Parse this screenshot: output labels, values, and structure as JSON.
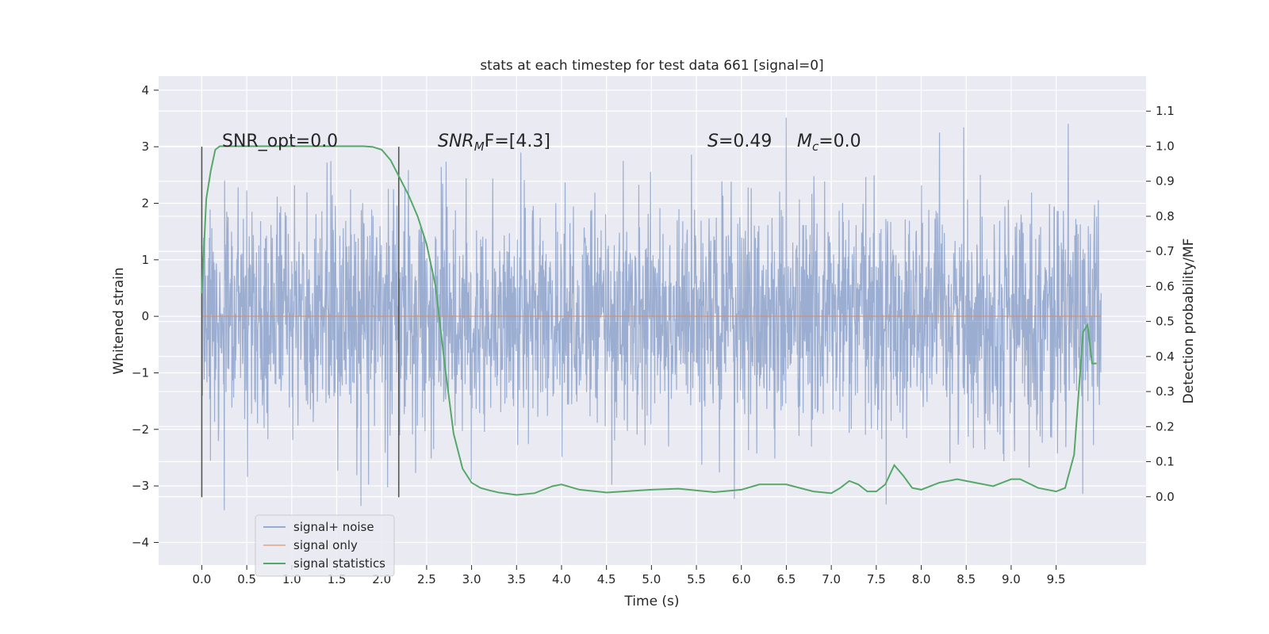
{
  "chart_data": {
    "type": "line",
    "title": "stats at each timestep for test data 661 [signal=0]",
    "xlabel": "Time (s)",
    "ylabel": "Whitened strain",
    "y2label": "Detection probability/MF",
    "xlim": [
      -0.48,
      10.5
    ],
    "ylim": [
      -4.4,
      4.25
    ],
    "y2lim": [
      -0.195,
      1.2
    ],
    "xticks": [
      "0.0",
      "0.5",
      "1.0",
      "1.5",
      "2.0",
      "2.5",
      "3.0",
      "3.5",
      "4.0",
      "4.5",
      "5.0",
      "5.5",
      "6.0",
      "6.5",
      "7.0",
      "7.5",
      "8.0",
      "8.5",
      "9.0",
      "9.5"
    ],
    "yticks": [
      "−4",
      "−3",
      "−2",
      "−1",
      "0",
      "1",
      "2",
      "3",
      "4"
    ],
    "y2ticks": [
      "0.0",
      "0.1",
      "0.2",
      "0.3",
      "0.4",
      "0.5",
      "0.6",
      "0.7",
      "0.8",
      "0.9",
      "1.0",
      "1.1"
    ],
    "grid": true,
    "legend_position": "lower-left",
    "annotations": {
      "snr_opt": "SNR_opt=0.0",
      "snr_mf_base": "SNR",
      "snr_mf_sub": "M",
      "snr_mf_rest": "F=[4.3]",
      "s_italic": "S",
      "s_rest": "=0.49",
      "mc_base": "M",
      "mc_sub": "c",
      "mc_rest": "=0.0"
    },
    "vertical_markers": [
      0.0,
      2.19
    ],
    "series": [
      {
        "name": "signal+ noise",
        "color": "#4c72b0",
        "x_range": [
          0.0,
          10.0
        ],
        "approx_envelope": [
          -4.0,
          4.0
        ]
      },
      {
        "name": "signal only",
        "color": "#dd8452",
        "y_constant": 0.0
      },
      {
        "name": "signal statistics",
        "color": "#55a868",
        "axis": "right",
        "x": [
          0.0,
          0.05,
          0.1,
          0.15,
          0.2,
          0.3,
          0.5,
          1.0,
          1.5,
          1.8,
          1.9,
          2.0,
          2.1,
          2.2,
          2.3,
          2.4,
          2.5,
          2.6,
          2.7,
          2.8,
          2.9,
          3.0,
          3.1,
          3.2,
          3.3,
          3.5,
          3.7,
          3.9,
          4.0,
          4.2,
          4.5,
          5.0,
          5.3,
          5.7,
          6.0,
          6.2,
          6.5,
          6.8,
          7.0,
          7.1,
          7.2,
          7.3,
          7.4,
          7.5,
          7.6,
          7.7,
          7.8,
          7.9,
          8.0,
          8.2,
          8.4,
          8.5,
          8.8,
          9.0,
          9.1,
          9.3,
          9.5,
          9.6,
          9.7,
          9.8,
          9.85,
          9.9,
          9.95
        ],
        "values": [
          0.58,
          0.85,
          0.93,
          0.99,
          1.0,
          1.0,
          1.0,
          1.0,
          1.0,
          1.0,
          0.998,
          0.99,
          0.96,
          0.91,
          0.86,
          0.8,
          0.72,
          0.6,
          0.38,
          0.18,
          0.08,
          0.04,
          0.025,
          0.018,
          0.012,
          0.005,
          0.01,
          0.03,
          0.035,
          0.02,
          0.012,
          0.02,
          0.023,
          0.013,
          0.02,
          0.035,
          0.035,
          0.015,
          0.01,
          0.025,
          0.045,
          0.035,
          0.015,
          0.015,
          0.035,
          0.09,
          0.06,
          0.025,
          0.02,
          0.04,
          0.05,
          0.045,
          0.03,
          0.05,
          0.05,
          0.025,
          0.015,
          0.025,
          0.12,
          0.47,
          0.49,
          0.38,
          0.38
        ]
      }
    ]
  }
}
